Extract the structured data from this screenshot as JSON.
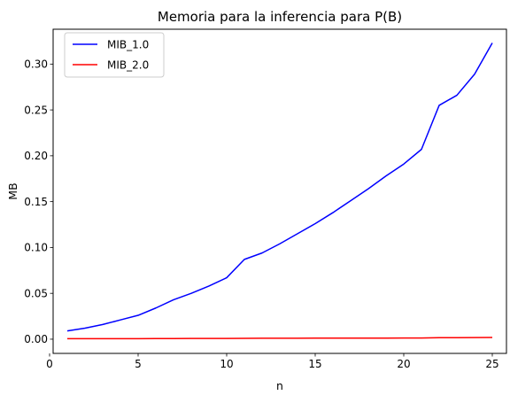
{
  "chart_data": {
    "type": "line",
    "title": "Memoria para la inferencia para P(B)",
    "xlabel": "n",
    "ylabel": "MB",
    "xlim": [
      0.2,
      25.8
    ],
    "ylim": [
      -0.0155,
      0.338
    ],
    "xticks": [
      0,
      5,
      10,
      15,
      20,
      25
    ],
    "yticks": [
      0.0,
      0.05,
      0.1,
      0.15,
      0.2,
      0.25,
      0.3
    ],
    "ytick_labels": [
      "0.00",
      "0.05",
      "0.10",
      "0.15",
      "0.20",
      "0.25",
      "0.30"
    ],
    "grid": false,
    "legend_position": "upper-left",
    "x": [
      1,
      2,
      3,
      4,
      5,
      6,
      7,
      8,
      9,
      10,
      11,
      12,
      13,
      14,
      15,
      16,
      17,
      18,
      19,
      20,
      21,
      22,
      23,
      24,
      25
    ],
    "series": [
      {
        "name": "MIB_1.0",
        "color": "#0000ff",
        "values": [
          0.009,
          0.012,
          0.016,
          0.021,
          0.026,
          0.034,
          0.043,
          0.05,
          0.058,
          0.067,
          0.087,
          0.094,
          0.104,
          0.115,
          0.126,
          0.138,
          0.151,
          0.164,
          0.178,
          0.191,
          0.207,
          0.255,
          0.266,
          0.289,
          0.323
        ]
      },
      {
        "name": "MIB_2.0",
        "color": "#ff0000",
        "values": [
          0.0005,
          0.0005,
          0.0005,
          0.0005,
          0.0006,
          0.0007,
          0.0007,
          0.0008,
          0.0008,
          0.0008,
          0.0009,
          0.001,
          0.001,
          0.001,
          0.0011,
          0.0011,
          0.0012,
          0.0012,
          0.0012,
          0.0013,
          0.0013,
          0.0016,
          0.0017,
          0.0018,
          0.0019
        ]
      }
    ]
  }
}
